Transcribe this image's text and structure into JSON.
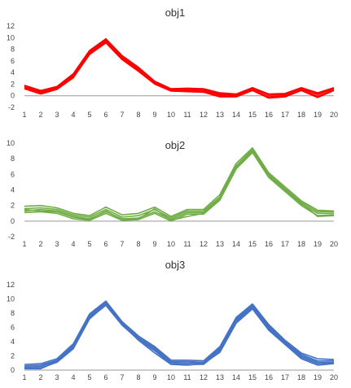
{
  "chart_data": [
    {
      "type": "line",
      "title": "obj1",
      "color": "#ff0000",
      "x": [
        1,
        2,
        3,
        4,
        5,
        6,
        7,
        8,
        9,
        10,
        11,
        12,
        13,
        14,
        15,
        16,
        17,
        18,
        19,
        20
      ],
      "ylim": [
        -2,
        12
      ],
      "yticks": [
        -2,
        0,
        2,
        4,
        6,
        8,
        10,
        12
      ],
      "series": [
        {
          "values": [
            1.8,
            0.9,
            1.6,
            3.8,
            7.8,
            9.8,
            6.9,
            4.9,
            2.5,
            1.2,
            1.3,
            1.2,
            0.5,
            0.3,
            1.4,
            0.3,
            0.4,
            1.4,
            0.5,
            1.4
          ]
        },
        {
          "values": [
            1.6,
            0.7,
            1.4,
            3.5,
            7.5,
            9.5,
            6.6,
            4.6,
            2.3,
            1.0,
            1.1,
            1.0,
            0.2,
            0.1,
            1.2,
            0.1,
            0.2,
            1.2,
            0.2,
            1.2
          ]
        },
        {
          "values": [
            1.4,
            0.5,
            1.2,
            3.3,
            7.3,
            9.3,
            6.4,
            4.4,
            2.1,
            0.9,
            0.9,
            0.8,
            0.0,
            -0.1,
            1.0,
            -0.2,
            0.0,
            1.0,
            -0.1,
            1.0
          ]
        },
        {
          "values": [
            1.2,
            0.3,
            1.1,
            3.1,
            7.1,
            9.1,
            6.2,
            4.2,
            2.0,
            0.8,
            0.7,
            0.6,
            -0.2,
            -0.2,
            0.9,
            -0.4,
            -0.2,
            0.9,
            -0.3,
            0.9
          ]
        },
        {
          "values": [
            1.7,
            0.8,
            1.5,
            3.6,
            7.6,
            9.7,
            6.8,
            4.8,
            2.4,
            1.1,
            1.2,
            1.1,
            0.3,
            0.2,
            1.3,
            0.2,
            0.3,
            1.3,
            0.3,
            1.3
          ]
        }
      ]
    },
    {
      "type": "line",
      "title": "obj2",
      "color": "#70ad47",
      "x": [
        1,
        2,
        3,
        4,
        5,
        6,
        7,
        8,
        9,
        10,
        11,
        12,
        13,
        14,
        15,
        16,
        17,
        18,
        19,
        20
      ],
      "ylim": [
        -2,
        10
      ],
      "yticks": [
        -2,
        0,
        2,
        4,
        6,
        8,
        10
      ],
      "series": [
        {
          "values": [
            1.9,
            2.0,
            1.7,
            1.0,
            0.7,
            1.8,
            0.8,
            1.0,
            1.8,
            0.6,
            1.5,
            1.5,
            3.4,
            7.4,
            9.4,
            6.2,
            4.4,
            2.6,
            1.4,
            1.3
          ]
        },
        {
          "values": [
            1.6,
            1.7,
            1.5,
            0.8,
            0.5,
            1.5,
            0.5,
            0.7,
            1.5,
            0.4,
            1.3,
            1.3,
            3.1,
            7.1,
            9.2,
            6.0,
            4.2,
            2.4,
            1.2,
            1.2
          ]
        },
        {
          "values": [
            1.3,
            1.5,
            1.3,
            0.6,
            0.3,
            1.2,
            0.3,
            0.4,
            1.2,
            0.2,
            1.1,
            1.1,
            2.9,
            6.9,
            9.0,
            5.8,
            4.0,
            2.2,
            1.0,
            1.0
          ]
        },
        {
          "values": [
            1.1,
            1.2,
            1.0,
            0.3,
            0.1,
            1.0,
            0.1,
            0.2,
            1.0,
            0.0,
            0.9,
            0.9,
            2.7,
            6.7,
            8.8,
            5.6,
            3.8,
            2.0,
            0.7,
            0.8
          ]
        },
        {
          "values": [
            1.5,
            1.3,
            1.2,
            0.5,
            0.2,
            1.3,
            0.2,
            0.3,
            1.6,
            0.1,
            0.6,
            1.0,
            3.0,
            7.0,
            9.1,
            5.9,
            4.1,
            2.3,
            0.6,
            0.7
          ]
        }
      ]
    },
    {
      "type": "line",
      "title": "obj3",
      "color": "#4472c4",
      "x": [
        1,
        2,
        3,
        4,
        5,
        6,
        7,
        8,
        9,
        10,
        11,
        12,
        13,
        14,
        15,
        16,
        17,
        18,
        19,
        20
      ],
      "ylim": [
        0,
        12
      ],
      "yticks": [
        0,
        2,
        4,
        6,
        8,
        10,
        12
      ],
      "series": [
        {
          "values": [
            0.8,
            0.9,
            1.6,
            3.7,
            7.9,
            9.7,
            6.8,
            4.8,
            3.3,
            1.4,
            1.4,
            1.3,
            3.3,
            7.4,
            9.3,
            6.4,
            4.2,
            2.4,
            1.6,
            1.5
          ]
        },
        {
          "values": [
            0.6,
            0.7,
            1.4,
            3.5,
            7.7,
            9.5,
            6.6,
            4.6,
            3.1,
            1.2,
            1.2,
            1.1,
            3.1,
            7.2,
            9.1,
            6.2,
            4.0,
            2.2,
            1.3,
            1.3
          ]
        },
        {
          "values": [
            0.4,
            0.5,
            1.3,
            3.3,
            7.5,
            9.3,
            6.5,
            4.5,
            2.9,
            1.1,
            1.0,
            1.0,
            2.9,
            7.0,
            8.9,
            6.0,
            3.9,
            2.0,
            1.1,
            1.1
          ]
        },
        {
          "values": [
            0.2,
            0.2,
            1.2,
            3.1,
            7.3,
            9.1,
            6.3,
            4.3,
            2.7,
            0.9,
            0.8,
            0.8,
            2.7,
            6.8,
            8.7,
            5.8,
            3.7,
            1.8,
            0.9,
            1.0
          ]
        },
        {
          "values": [
            0.3,
            0.3,
            1.1,
            3.0,
            7.2,
            9.2,
            6.4,
            4.2,
            2.4,
            0.8,
            0.7,
            0.9,
            2.5,
            6.6,
            8.6,
            5.6,
            3.6,
            1.6,
            0.7,
            0.9
          ]
        }
      ]
    }
  ]
}
